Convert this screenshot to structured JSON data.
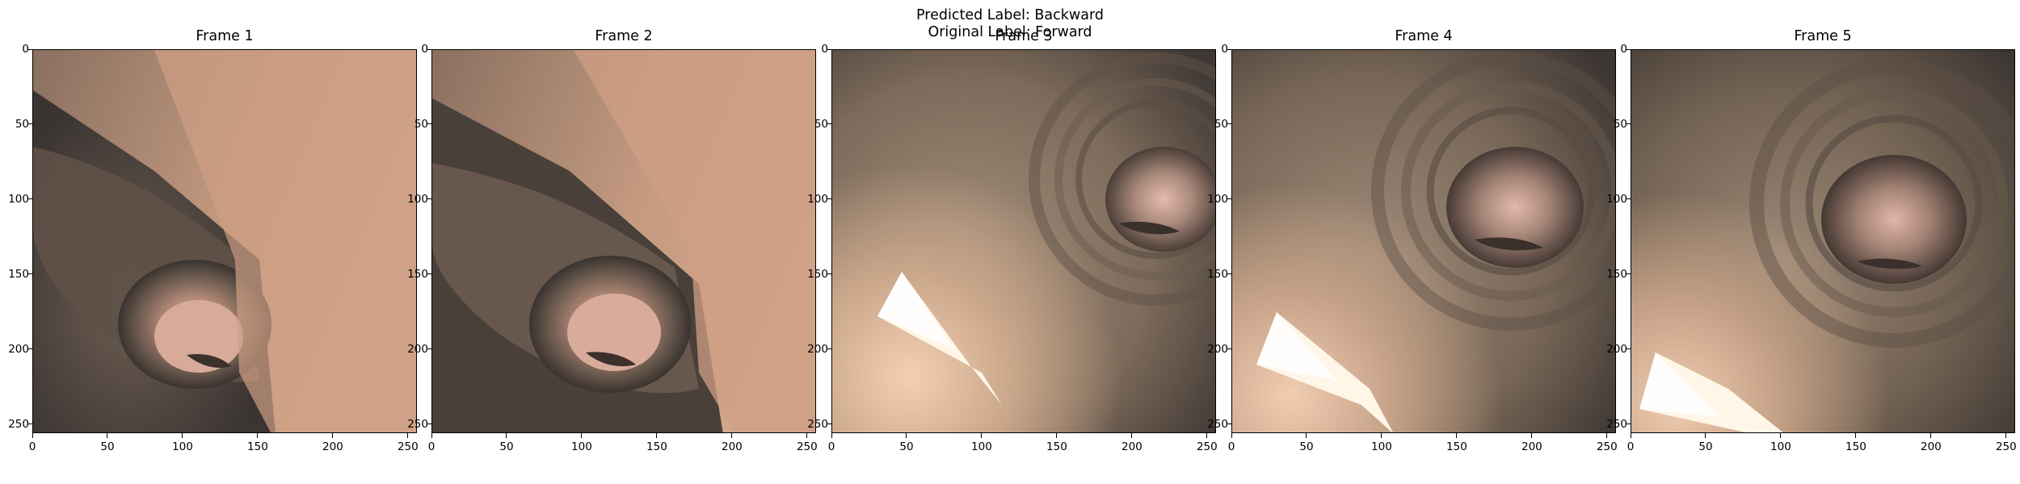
{
  "figure": {
    "predicted_label": "Predicted Label: Backward",
    "original_label": "Original Label: Forward"
  },
  "axes": {
    "x_ticks": [
      "0",
      "50",
      "100",
      "150",
      "200",
      "250"
    ],
    "y_ticks": [
      "0",
      "50",
      "100",
      "150",
      "200",
      "250"
    ]
  },
  "frames": [
    {
      "title": "Frame 1",
      "scene": "endoscopic-lumen-left"
    },
    {
      "title": "Frame 2",
      "scene": "endoscopic-lumen-left"
    },
    {
      "title": "Frame 3",
      "scene": "endoscopic-lumen-right-with-glare"
    },
    {
      "title": "Frame 4",
      "scene": "endoscopic-lumen-right-with-glare"
    },
    {
      "title": "Frame 5",
      "scene": "endoscopic-lumen-center-with-glare"
    }
  ]
}
